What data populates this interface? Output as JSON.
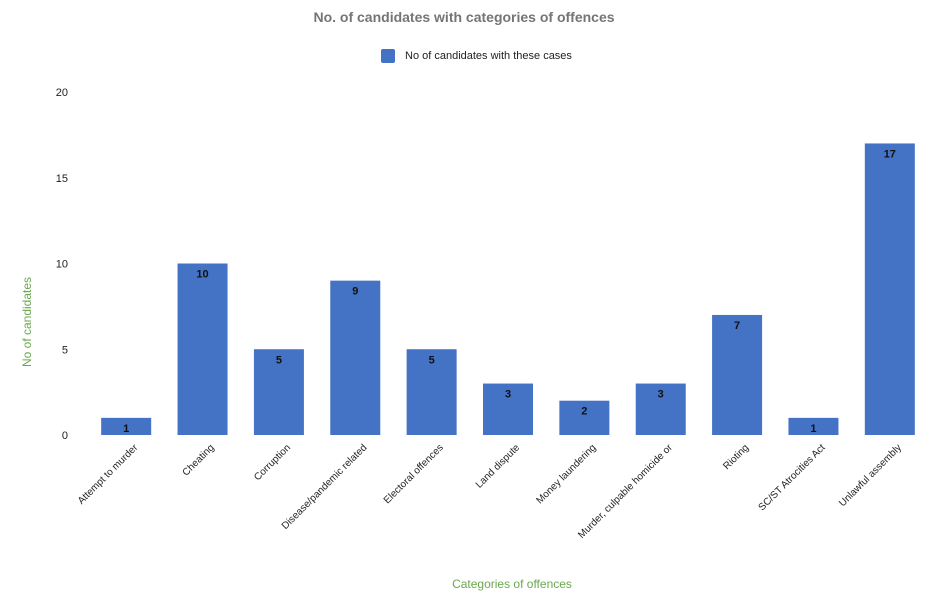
{
  "chart_data": {
    "type": "bar",
    "title": "No. of candidates with categories of offences",
    "xlabel": "Categories of offences",
    "ylabel": "No of candidates",
    "categories": [
      "Attempt to murder",
      "Cheating",
      "Corruption",
      "Disease/pandemic related",
      "Electoral offences",
      "Land dispute",
      "Money laundering",
      "Murder, culpable homicide or",
      "Rioting",
      "SC/ST Atrocities Act",
      "Unlawful assembly"
    ],
    "series": [
      {
        "name": "No of candidates with these cases",
        "values": [
          1,
          10,
          5,
          9,
          5,
          3,
          2,
          3,
          7,
          1,
          17
        ],
        "color": "#4472c4"
      }
    ],
    "ylim": [
      0,
      20
    ],
    "yticks": [
      "0",
      "5",
      "10",
      "15",
      "20"
    ],
    "grid": false,
    "legend": "top-center",
    "data_labels": true,
    "colors": {
      "bar": "#4472c4",
      "axis_title": "#6aa84f",
      "title": "#757575"
    }
  }
}
